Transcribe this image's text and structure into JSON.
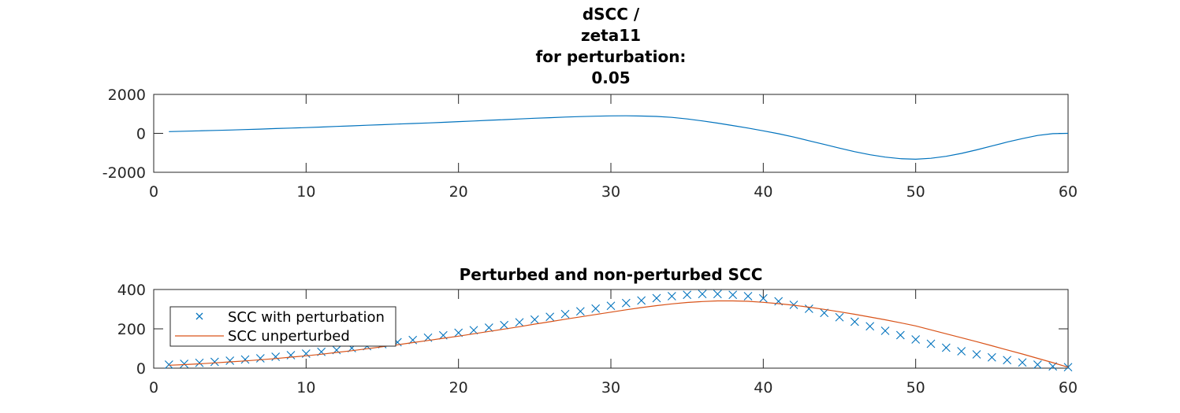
{
  "colors": {
    "series_blue": "#0072BD",
    "series_orange": "#D95319",
    "axis": "#262626",
    "background": "#ffffff"
  },
  "chart_data": [
    {
      "type": "line",
      "title_lines": [
        "dSCC /",
        "zeta11",
        "for perturbation:",
        "0.05"
      ],
      "xlabel": "",
      "ylabel": "",
      "xlim": [
        0,
        60
      ],
      "ylim": [
        -2000,
        2000
      ],
      "xticks": [
        "0",
        "10",
        "20",
        "30",
        "40",
        "50",
        "60"
      ],
      "yticks": [
        "2000",
        "0",
        "-2000"
      ],
      "grid": false,
      "series": [
        {
          "style": "line",
          "color": "#0072BD",
          "x": [
            1,
            2,
            3,
            4,
            5,
            6,
            7,
            8,
            9,
            10,
            11,
            12,
            13,
            14,
            15,
            16,
            17,
            18,
            19,
            20,
            21,
            22,
            23,
            24,
            25,
            26,
            27,
            28,
            29,
            30,
            31,
            32,
            33,
            34,
            35,
            36,
            37,
            38,
            39,
            40,
            41,
            42,
            43,
            44,
            45,
            46,
            47,
            48,
            49,
            50,
            51,
            52,
            53,
            54,
            55,
            56,
            57,
            58,
            59,
            60
          ],
          "values": [
            90,
            110,
            130,
            150,
            170,
            195,
            220,
            245,
            270,
            295,
            325,
            355,
            385,
            415,
            445,
            475,
            505,
            535,
            565,
            600,
            635,
            670,
            705,
            740,
            775,
            805,
            835,
            860,
            880,
            895,
            900,
            890,
            870,
            820,
            740,
            640,
            525,
            400,
            270,
            130,
            -20,
            -190,
            -380,
            -570,
            -760,
            -940,
            -1100,
            -1220,
            -1300,
            -1330,
            -1280,
            -1180,
            -1030,
            -850,
            -650,
            -450,
            -270,
            -110,
            -15,
            0
          ]
        }
      ]
    },
    {
      "type": "line",
      "title": "Perturbed and non-perturbed SCC",
      "xlabel": "",
      "ylabel": "",
      "xlim": [
        0,
        60
      ],
      "ylim": [
        0,
        400
      ],
      "xticks": [
        "0",
        "10",
        "20",
        "30",
        "40",
        "50",
        "60"
      ],
      "yticks": [
        "400",
        "200",
        "0"
      ],
      "grid": false,
      "legend_position": "top-left",
      "series": [
        {
          "name": "SCC with perturbation",
          "style": "markers-x",
          "color": "#0072BD",
          "x": [
            1,
            2,
            3,
            4,
            5,
            6,
            7,
            8,
            9,
            10,
            11,
            12,
            13,
            14,
            15,
            16,
            17,
            18,
            19,
            20,
            21,
            22,
            23,
            24,
            25,
            26,
            27,
            28,
            29,
            30,
            31,
            32,
            33,
            34,
            35,
            36,
            37,
            38,
            39,
            40,
            41,
            42,
            43,
            44,
            45,
            46,
            47,
            48,
            49,
            50,
            51,
            52,
            53,
            54,
            55,
            56,
            57,
            58,
            59,
            60
          ],
          "values": [
            18,
            22,
            27,
            32,
            38,
            44,
            50,
            58,
            66,
            74,
            83,
            92,
            102,
            112,
            122,
            132,
            143,
            155,
            167,
            180,
            193,
            206,
            219,
            233,
            247,
            261,
            275,
            289,
            303,
            317,
            331,
            344,
            356,
            366,
            373,
            377,
            377,
            373,
            366,
            355,
            340,
            322,
            302,
            281,
            259,
            236,
            213,
            190,
            168,
            146,
            124,
            104,
            86,
            70,
            55,
            41,
            29,
            18,
            9,
            5
          ]
        },
        {
          "name": "SCC unperturbed",
          "style": "line",
          "color": "#D95319",
          "x": [
            1,
            2,
            3,
            4,
            5,
            6,
            7,
            8,
            9,
            10,
            11,
            12,
            13,
            14,
            15,
            16,
            17,
            18,
            19,
            20,
            21,
            22,
            23,
            24,
            25,
            26,
            27,
            28,
            29,
            30,
            31,
            32,
            33,
            34,
            35,
            36,
            37,
            38,
            39,
            40,
            41,
            42,
            43,
            44,
            45,
            46,
            47,
            48,
            49,
            50,
            51,
            52,
            53,
            54,
            55,
            56,
            57,
            58,
            59,
            60
          ],
          "values": [
            15,
            18,
            22,
            27,
            32,
            37,
            43,
            49,
            56,
            63,
            71,
            80,
            89,
            99,
            109,
            119,
            130,
            141,
            152,
            163,
            175,
            187,
            199,
            211,
            224,
            236,
            249,
            261,
            273,
            285,
            297,
            308,
            318,
            327,
            334,
            339,
            342,
            342,
            340,
            335,
            328,
            320,
            310,
            299,
            287,
            274,
            260,
            246,
            231,
            215,
            195,
            175,
            155,
            135,
            114,
            93,
            72,
            50,
            28,
            5
          ]
        }
      ]
    }
  ]
}
